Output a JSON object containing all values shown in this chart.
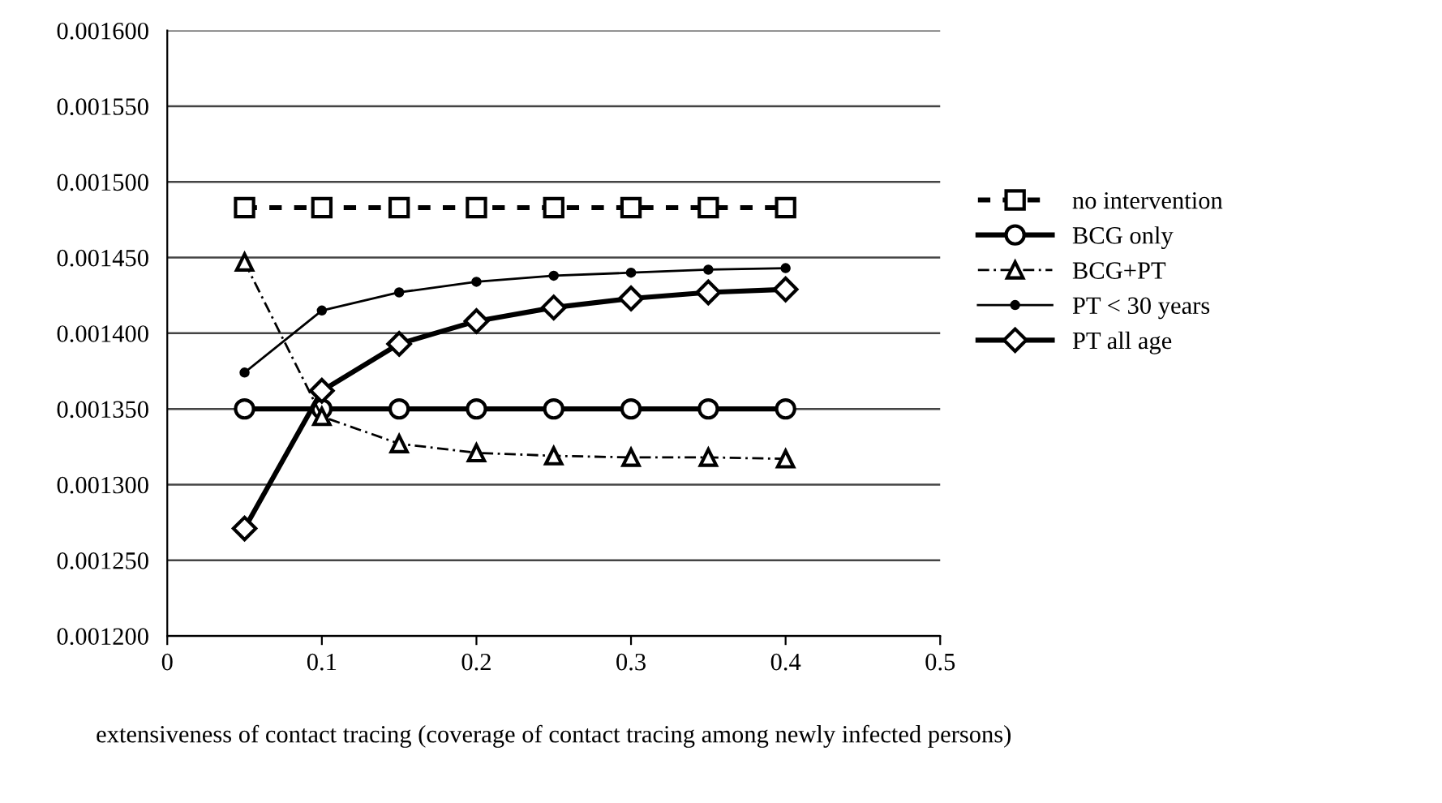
{
  "chart_data": {
    "type": "line",
    "xlabel": "extensiveness of contact tracing (coverage of contact tracing among newly infected persons)",
    "x": [
      0.05,
      0.1,
      0.15,
      0.2,
      0.25,
      0.3,
      0.35,
      0.4
    ],
    "series": [
      {
        "name": "no intervention",
        "color": "#000000",
        "marker": "square",
        "line_style": "dashed",
        "values": [
          0.001483,
          0.001483,
          0.001483,
          0.001483,
          0.001483,
          0.001483,
          0.001483,
          0.001483
        ]
      },
      {
        "name": "BCG only",
        "color": "#000000",
        "marker": "circle",
        "line_style": "solid",
        "values": [
          0.00135,
          0.00135,
          0.00135,
          0.00135,
          0.00135,
          0.00135,
          0.00135,
          0.00135
        ]
      },
      {
        "name": "BCG+PT",
        "color": "#000000",
        "marker": "triangle",
        "line_style": "dotted",
        "values": [
          0.001447,
          0.001345,
          0.001327,
          0.001321,
          0.001319,
          0.001318,
          0.001318,
          0.001317
        ]
      },
      {
        "name": "PT < 30 years",
        "color": "#000000",
        "marker": "circle",
        "line_style": "solid",
        "values": [
          0.001374,
          0.001415,
          0.001427,
          0.001434,
          0.001438,
          0.00144,
          0.001442,
          0.001443
        ]
      },
      {
        "name": "PT all age",
        "color": "#000000",
        "marker": "diamond",
        "line_style": "solid",
        "values": [
          0.001271,
          0.001362,
          0.001393,
          0.001408,
          0.001417,
          0.001423,
          0.001427,
          0.001429
        ]
      }
    ],
    "xlim": [
      0,
      0.5
    ],
    "xticks": [
      0,
      0.1,
      0.2,
      0.3,
      0.4,
      0.5
    ],
    "ylim": [
      0.0012,
      0.0016
    ],
    "yticks": [
      {
        "value": 0.0012,
        "label": "0.001200"
      },
      {
        "value": 0.00125,
        "label": "0.001250"
      },
      {
        "value": 0.0013,
        "label": "0.001300"
      },
      {
        "value": 0.00135,
        "label": "0.001350"
      },
      {
        "value": 0.0014,
        "label": "0.001400"
      },
      {
        "value": 0.00145,
        "label": "0.001450"
      },
      {
        "value": 0.0015,
        "label": "0.001500"
      },
      {
        "value": 0.00155,
        "label": "0.001550"
      },
      {
        "value": 0.0016,
        "label": "0.001600"
      }
    ],
    "grid": "y",
    "legend": "right"
  }
}
